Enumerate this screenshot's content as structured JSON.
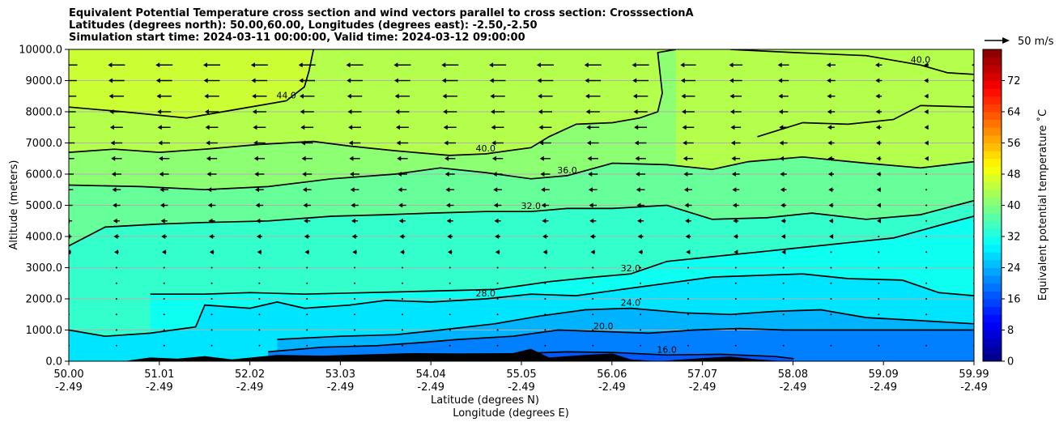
{
  "title_lines": [
    "Equivalent Potential Temperature cross section and wind vectors parallel to cross section: CrosssectionA",
    "Latitudes (degrees north): 50.00,60.00, Longitudes (degrees east): -2.50,-2.50",
    "Simulation start time: 2024-03-11 00:00:00, Valid time: 2024-03-12 09:00:00"
  ],
  "chart_data": {
    "type": "heatmap",
    "title": "Equivalent Potential Temperature cross section and wind vectors parallel to cross section: CrosssectionA",
    "ylabel": "Altitude (meters)",
    "xlabel_lines": [
      "Latitude (degrees N)",
      "Longitude (degrees E)"
    ],
    "ylim": [
      0,
      10000
    ],
    "y_ticks": [
      "0.0",
      "1000.0",
      "2000.0",
      "3000.0",
      "4000.0",
      "5000.0",
      "6000.0",
      "7000.0",
      "8000.0",
      "9000.0",
      "10000.0"
    ],
    "y_tick_values": [
      0,
      1000,
      2000,
      3000,
      4000,
      5000,
      6000,
      7000,
      8000,
      9000,
      10000
    ],
    "x_ticks_lat": [
      "50.00",
      "51.01",
      "52.02",
      "53.03",
      "54.04",
      "55.05",
      "56.06",
      "57.07",
      "58.08",
      "59.09",
      "59.99"
    ],
    "x_ticks_lon": [
      "-2.49",
      "-2.49",
      "-2.49",
      "-2.49",
      "-2.49",
      "-2.49",
      "-2.49",
      "-2.49",
      "-2.49",
      "-2.49",
      "-2.49"
    ],
    "grid": "horizontal",
    "colorbar": {
      "label": "Equivalent potential temperature ˚C",
      "min": 0,
      "max": 80,
      "ticks": [
        "0",
        "8",
        "16",
        "24",
        "32",
        "40",
        "48",
        "56",
        "64",
        "72"
      ],
      "tick_values": [
        0,
        8,
        16,
        24,
        32,
        40,
        48,
        56,
        64,
        72
      ],
      "colormap": "jet"
    },
    "quiver_key": "50 m/s",
    "contours": [
      {
        "label": "44.0",
        "points": [
          [
            50.0,
            8150
          ],
          [
            50.6,
            8000
          ],
          [
            51.3,
            7800
          ],
          [
            51.9,
            8100
          ],
          [
            52.4,
            8350
          ],
          [
            52.6,
            8800
          ],
          [
            52.65,
            9300
          ],
          [
            52.7,
            10000
          ]
        ]
      },
      {
        "label": "40.0",
        "points": [
          [
            50.0,
            6700
          ],
          [
            50.5,
            6800
          ],
          [
            51.0,
            6700
          ],
          [
            51.5,
            6800
          ],
          [
            52.1,
            6950
          ],
          [
            52.7,
            7050
          ],
          [
            53.1,
            6900
          ],
          [
            53.6,
            6750
          ],
          [
            54.2,
            6600
          ],
          [
            54.6,
            6650
          ],
          [
            55.1,
            6850
          ],
          [
            55.3,
            7200
          ],
          [
            55.6,
            7600
          ],
          [
            56.0,
            7650
          ],
          [
            56.3,
            7800
          ],
          [
            56.5,
            8000
          ],
          [
            56.55,
            8600
          ],
          [
            56.5,
            9900
          ],
          [
            56.7,
            10000
          ]
        ]
      },
      {
        "label": "40.0",
        "points": [
          [
            57.3,
            10000
          ],
          [
            58.0,
            9900
          ],
          [
            58.8,
            9800
          ],
          [
            59.4,
            9500
          ],
          [
            59.7,
            9250
          ],
          [
            59.99,
            9200
          ]
        ]
      },
      {
        "label": "",
        "points": [
          [
            57.6,
            7200
          ],
          [
            58.1,
            7650
          ],
          [
            58.6,
            7600
          ],
          [
            59.1,
            7750
          ],
          [
            59.4,
            8200
          ],
          [
            59.99,
            8150
          ]
        ]
      },
      {
        "label": "36.0",
        "points": [
          [
            50.0,
            5650
          ],
          [
            50.8,
            5600
          ],
          [
            51.5,
            5500
          ],
          [
            52.2,
            5600
          ],
          [
            52.9,
            5850
          ],
          [
            53.6,
            6000
          ],
          [
            54.1,
            6200
          ],
          [
            54.6,
            6050
          ],
          [
            55.1,
            5850
          ],
          [
            55.5,
            5950
          ],
          [
            56.0,
            6350
          ],
          [
            56.6,
            6300
          ],
          [
            57.1,
            6150
          ],
          [
            57.5,
            6400
          ],
          [
            58.1,
            6550
          ],
          [
            58.8,
            6350
          ],
          [
            59.4,
            6200
          ],
          [
            59.99,
            6400
          ]
        ]
      },
      {
        "label": "32.0",
        "points": [
          [
            50.0,
            3700
          ],
          [
            50.4,
            4300
          ],
          [
            51.0,
            4400
          ],
          [
            51.5,
            4450
          ],
          [
            52.2,
            4500
          ],
          [
            52.9,
            4650
          ],
          [
            53.5,
            4700
          ],
          [
            54.0,
            4750
          ],
          [
            54.6,
            4800
          ],
          [
            55.1,
            4800
          ],
          [
            55.5,
            4900
          ],
          [
            56.0,
            4900
          ],
          [
            56.6,
            5000
          ],
          [
            57.1,
            4550
          ],
          [
            57.7,
            4600
          ],
          [
            58.2,
            4750
          ],
          [
            58.8,
            4550
          ],
          [
            59.4,
            4700
          ],
          [
            59.99,
            5150
          ]
        ]
      },
      {
        "label": "32.0",
        "points": [
          [
            50.9,
            2150
          ],
          [
            51.5,
            2150
          ],
          [
            52.0,
            2200
          ],
          [
            52.6,
            2150
          ],
          [
            53.3,
            2200
          ],
          [
            54.0,
            2250
          ],
          [
            54.7,
            2300
          ],
          [
            55.3,
            2550
          ],
          [
            55.8,
            2700
          ],
          [
            56.2,
            2800
          ],
          [
            56.6,
            3200
          ],
          [
            57.1,
            3350
          ],
          [
            57.6,
            3500
          ],
          [
            58.1,
            3650
          ],
          [
            58.6,
            3800
          ],
          [
            59.1,
            3950
          ],
          [
            59.6,
            4350
          ],
          [
            59.99,
            4650
          ]
        ]
      },
      {
        "label": "28.0",
        "points": [
          [
            50.0,
            1000
          ],
          [
            50.4,
            800
          ],
          [
            50.9,
            900
          ],
          [
            51.4,
            1100
          ],
          [
            51.5,
            1800
          ],
          [
            52.0,
            1700
          ],
          [
            52.3,
            1900
          ],
          [
            52.6,
            1700
          ],
          [
            53.1,
            1800
          ],
          [
            53.5,
            1950
          ],
          [
            54.0,
            1900
          ],
          [
            54.6,
            2000
          ],
          [
            55.1,
            2150
          ],
          [
            55.6,
            2100
          ],
          [
            56.1,
            2300
          ],
          [
            56.6,
            2500
          ],
          [
            57.1,
            2700
          ],
          [
            57.6,
            2750
          ],
          [
            58.1,
            2800
          ],
          [
            58.6,
            2650
          ],
          [
            59.2,
            2600
          ],
          [
            59.6,
            2200
          ],
          [
            59.99,
            2100
          ]
        ]
      },
      {
        "label": "24.0",
        "points": [
          [
            52.3,
            700
          ],
          [
            53.0,
            800
          ],
          [
            53.6,
            850
          ],
          [
            54.1,
            1000
          ],
          [
            54.7,
            1200
          ],
          [
            55.2,
            1450
          ],
          [
            55.7,
            1650
          ],
          [
            56.2,
            1700
          ],
          [
            56.8,
            1550
          ],
          [
            57.3,
            1500
          ],
          [
            57.8,
            1600
          ],
          [
            58.3,
            1650
          ],
          [
            58.8,
            1400
          ],
          [
            59.4,
            1300
          ],
          [
            59.99,
            1200
          ]
        ]
      },
      {
        "label": "20.0",
        "points": [
          [
            52.2,
            300
          ],
          [
            52.8,
            450
          ],
          [
            53.4,
            500
          ],
          [
            53.9,
            600
          ],
          [
            54.3,
            700
          ],
          [
            54.9,
            800
          ],
          [
            55.4,
            1000
          ],
          [
            55.9,
            950
          ],
          [
            56.4,
            900
          ],
          [
            56.9,
            1000
          ],
          [
            57.4,
            1050
          ],
          [
            57.9,
            1000
          ],
          [
            58.5,
            1000
          ],
          [
            59.1,
            1000
          ],
          [
            59.99,
            1000
          ]
        ]
      },
      {
        "label": "16.0",
        "points": [
          [
            54.3,
            150
          ],
          [
            55.0,
            250
          ],
          [
            55.5,
            300
          ],
          [
            56.0,
            280
          ],
          [
            56.6,
            200
          ],
          [
            57.2,
            220
          ],
          [
            57.8,
            150
          ],
          [
            58.0,
            80
          ]
        ]
      }
    ],
    "terrain_profile": [
      [
        50.0,
        0
      ],
      [
        50.6,
        0
      ],
      [
        50.9,
        120
      ],
      [
        51.2,
        80
      ],
      [
        51.5,
        160
      ],
      [
        51.8,
        60
      ],
      [
        52.3,
        200
      ],
      [
        52.8,
        180
      ],
      [
        53.3,
        220
      ],
      [
        53.8,
        260
      ],
      [
        54.3,
        250
      ],
      [
        54.9,
        260
      ],
      [
        55.1,
        400
      ],
      [
        55.3,
        120
      ],
      [
        55.7,
        200
      ],
      [
        56.0,
        250
      ],
      [
        56.2,
        60
      ],
      [
        56.5,
        0
      ],
      [
        57.0,
        100
      ],
      [
        57.3,
        150
      ],
      [
        57.6,
        60
      ],
      [
        57.9,
        0
      ],
      [
        59.99,
        0
      ]
    ]
  }
}
